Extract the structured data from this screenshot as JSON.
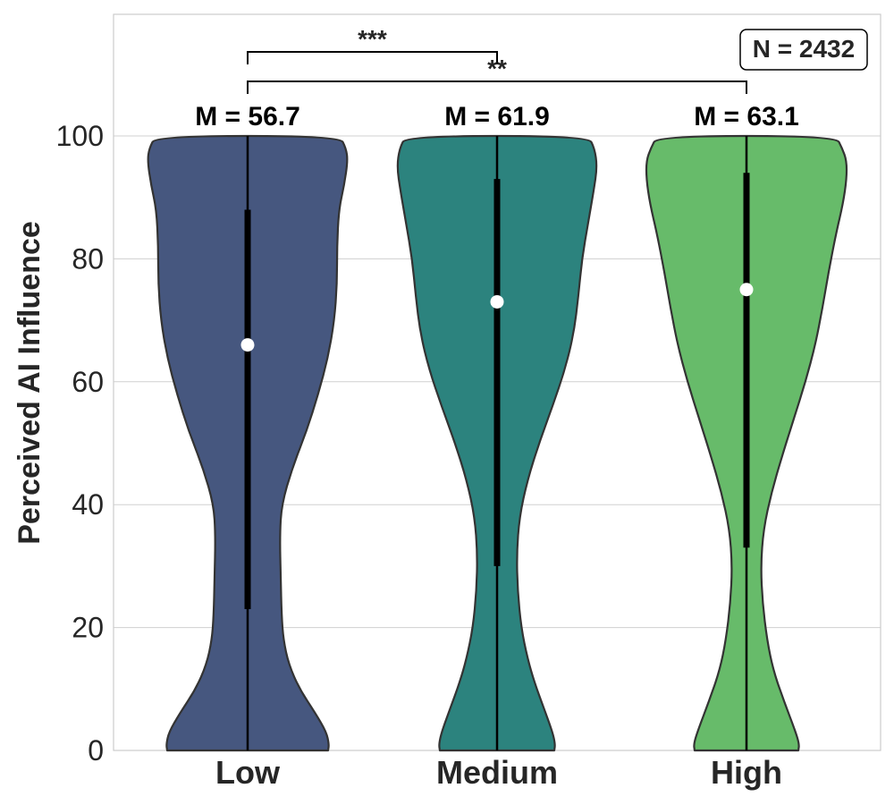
{
  "chart_data": {
    "type": "violin",
    "ylabel": "Perceived AI Influence",
    "xlabel": "",
    "ylim": [
      0,
      120
    ],
    "yticks": [
      "0",
      "20",
      "40",
      "60",
      "80",
      "100"
    ],
    "grid": "horizontal",
    "categories": [
      "Low",
      "Medium",
      "High"
    ],
    "colors": [
      "#46577f",
      "#2c837e",
      "#67bb6a"
    ],
    "medians": [
      66,
      73,
      75
    ],
    "iqr": [
      [
        23,
        88
      ],
      [
        30,
        93
      ],
      [
        33,
        94
      ]
    ],
    "range": [
      [
        0,
        100
      ],
      [
        0,
        100
      ],
      [
        0,
        100
      ]
    ],
    "mean_labels": [
      "M = 56.7",
      "M = 61.9",
      "M = 63.1"
    ],
    "significance": [
      {
        "from": "Low",
        "to": "Medium",
        "label": "***"
      },
      {
        "from": "Low",
        "to": "High",
        "label": "**"
      }
    ],
    "annotation": "N = 2432"
  }
}
